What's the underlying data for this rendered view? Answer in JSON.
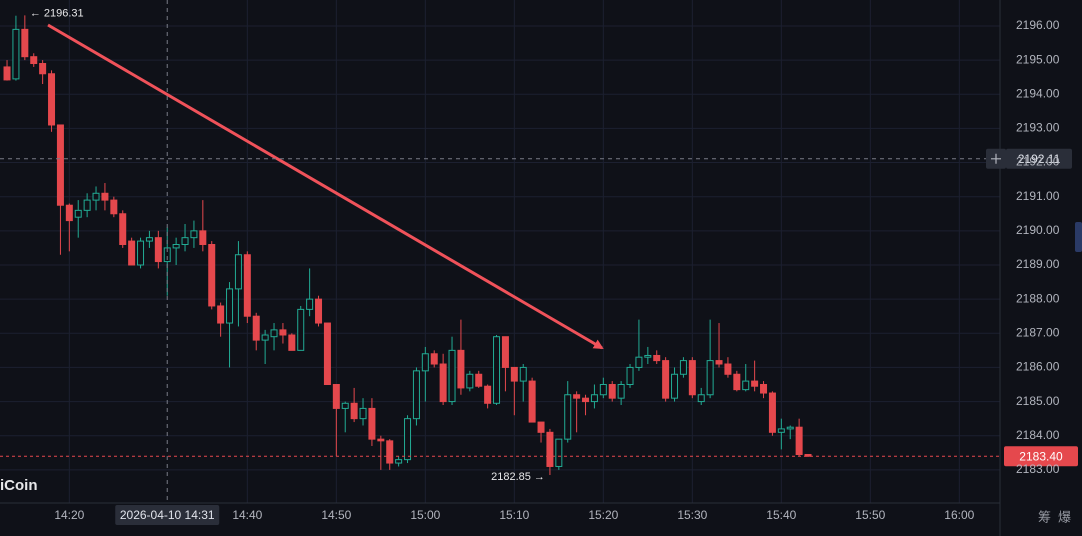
{
  "chart_data": {
    "type": "candlestick",
    "watermark": "iCoin",
    "open": [
      2194.8,
      2194.45,
      2195.9,
      2195.1,
      2194.9,
      2194.6,
      2193.1,
      2190.75,
      2190.4,
      2190.6,
      2190.9,
      2191.1,
      2190.9,
      2190.5,
      2189.7,
      2189.0,
      2189.7,
      2189.8,
      2189.1,
      2189.5,
      2189.6,
      2189.8,
      2190.0,
      2189.6,
      2187.8,
      2187.3,
      2188.3,
      2189.3,
      2187.5,
      2186.8,
      2186.9,
      2187.1,
      2186.95,
      2186.5,
      2187.7,
      2188.0,
      2187.3,
      2185.5,
      2184.8,
      2184.95,
      2184.5,
      2184.8,
      2183.9,
      2183.85,
      2183.2,
      2183.3,
      2184.5,
      2185.9,
      2186.4,
      2186.1,
      2185.0,
      2186.5,
      2185.4,
      2185.8,
      2185.45,
      2184.95,
      2186.9,
      2186.0,
      2185.6,
      2185.6,
      2184.4,
      2184.1,
      2183.1,
      2183.9,
      2185.2,
      2185.1,
      2185.0,
      2185.2,
      2185.5,
      2185.1,
      2185.5,
      2186.0,
      2186.3,
      2186.35,
      2186.2,
      2185.1,
      2185.8,
      2186.2,
      2185.0,
      2185.2,
      2186.2,
      2186.1,
      2185.8,
      2185.35,
      2185.6,
      2185.5,
      2185.25,
      2184.1,
      2184.2,
      2184.25,
      2183.45
    ],
    "high": [
      2195.0,
      2196.3,
      2196.31,
      2195.2,
      2195.0,
      2194.7,
      2193.1,
      2190.8,
      2190.9,
      2191.1,
      2191.3,
      2191.4,
      2191.0,
      2190.6,
      2189.8,
      2189.8,
      2190.0,
      2190.0,
      2190.1,
      2189.8,
      2190.2,
      2190.3,
      2190.9,
      2189.7,
      2187.9,
      2188.5,
      2189.7,
      2189.4,
      2187.6,
      2187.1,
      2187.3,
      2187.3,
      2187.0,
      2187.8,
      2188.9,
      2188.1,
      2187.3,
      2185.5,
      2185.0,
      2185.4,
      2185.1,
      2185.1,
      2184.0,
      2183.9,
      2183.4,
      2184.6,
      2186.0,
      2186.6,
      2186.5,
      2186.4,
      2186.9,
      2187.4,
      2185.9,
      2185.9,
      2185.5,
      2186.95,
      2186.9,
      2186.0,
      2186.1,
      2185.7,
      2184.4,
      2184.2,
      2183.9,
      2185.6,
      2185.3,
      2185.2,
      2185.5,
      2185.7,
      2185.6,
      2185.6,
      2186.1,
      2187.4,
      2186.6,
      2186.5,
      2186.3,
      2186.0,
      2186.3,
      2186.3,
      2185.4,
      2187.4,
      2187.3,
      2186.3,
      2185.9,
      2186.1,
      2186.2,
      2185.6,
      2185.3,
      2184.5,
      2184.3,
      2184.5,
      2183.45
    ],
    "low": [
      2194.4,
      2194.4,
      2195.0,
      2194.8,
      2194.3,
      2192.9,
      2189.3,
      2189.4,
      2189.8,
      2190.4,
      2190.6,
      2190.6,
      2190.4,
      2189.5,
      2189.0,
      2188.9,
      2189.5,
      2188.9,
      2188.1,
      2189.0,
      2189.4,
      2189.5,
      2189.4,
      2187.7,
      2186.9,
      2186.0,
      2187.2,
      2187.3,
      2186.5,
      2186.1,
      2186.5,
      2186.7,
      2186.5,
      2186.5,
      2187.5,
      2187.2,
      2185.5,
      2183.4,
      2184.1,
      2184.4,
      2184.3,
      2183.7,
      2183.0,
      2183.0,
      2183.1,
      2183.2,
      2184.3,
      2185.0,
      2186.0,
      2184.9,
      2184.9,
      2185.2,
      2185.3,
      2185.4,
      2184.8,
      2184.9,
      2185.3,
      2184.6,
      2185.0,
      2184.4,
      2183.8,
      2182.85,
      2183.0,
      2183.8,
      2184.1,
      2184.6,
      2184.8,
      2185.1,
      2185.0,
      2184.9,
      2185.4,
      2185.9,
      2186.1,
      2186.1,
      2185.0,
      2185.0,
      2185.7,
      2185.1,
      2184.9,
      2185.1,
      2186.0,
      2185.7,
      2185.3,
      2185.3,
      2185.3,
      2185.1,
      2184.0,
      2183.6,
      2183.9,
      2183.4,
      2183.38
    ],
    "close": [
      2194.42,
      2195.9,
      2195.1,
      2194.9,
      2194.6,
      2193.1,
      2190.75,
      2190.3,
      2190.6,
      2190.9,
      2191.1,
      2190.9,
      2190.5,
      2189.6,
      2189.0,
      2189.7,
      2189.8,
      2189.1,
      2189.5,
      2189.6,
      2189.8,
      2190.0,
      2189.6,
      2187.8,
      2187.3,
      2188.3,
      2189.3,
      2187.5,
      2186.8,
      2186.95,
      2187.1,
      2186.95,
      2186.5,
      2187.7,
      2188.0,
      2187.3,
      2185.5,
      2184.8,
      2184.95,
      2184.5,
      2184.8,
      2183.9,
      2183.85,
      2183.2,
      2183.3,
      2184.5,
      2185.9,
      2186.4,
      2186.1,
      2185.0,
      2186.5,
      2185.4,
      2185.8,
      2185.45,
      2184.95,
      2186.9,
      2186.0,
      2185.6,
      2186.0,
      2184.4,
      2184.1,
      2183.1,
      2183.9,
      2185.2,
      2185.1,
      2185.0,
      2185.2,
      2185.5,
      2185.1,
      2185.5,
      2186.0,
      2186.3,
      2186.35,
      2186.2,
      2185.1,
      2185.8,
      2186.2,
      2185.2,
      2185.2,
      2186.2,
      2186.1,
      2185.8,
      2185.35,
      2185.6,
      2185.45,
      2185.25,
      2184.1,
      2184.2,
      2184.25,
      2183.45,
      2183.4
    ],
    "up_color": "#22ab94",
    "down_color": "#e5484d",
    "xlim": [
      -0.79,
      111.57
    ],
    "xticks": [
      {
        "value": 7,
        "label": "14:20"
      },
      {
        "value": 27,
        "label": "14:40"
      },
      {
        "value": 37,
        "label": "14:50"
      },
      {
        "value": 47,
        "label": "15:00"
      },
      {
        "value": 57,
        "label": "15:10"
      },
      {
        "value": 67,
        "label": "15:20"
      },
      {
        "value": 77,
        "label": "15:30"
      },
      {
        "value": 87,
        "label": "15:40"
      },
      {
        "value": 97,
        "label": "15:50"
      },
      {
        "value": 107,
        "label": "16:00"
      }
    ],
    "ylim": [
      2182.03,
      2196.76
    ],
    "yticks": [
      {
        "value": 2183,
        "label": "2183.00"
      },
      {
        "value": 2184,
        "label": "2184.00"
      },
      {
        "value": 2185,
        "label": "2185.00"
      },
      {
        "value": 2186,
        "label": "2186.00"
      },
      {
        "value": 2187,
        "label": "2187.00"
      },
      {
        "value": 2188,
        "label": "2188.00"
      },
      {
        "value": 2189,
        "label": "2189.00"
      },
      {
        "value": 2190,
        "label": "2190.00"
      },
      {
        "value": 2191,
        "label": "2191.00"
      },
      {
        "value": 2192,
        "label": "2192.00"
      },
      {
        "value": 2193,
        "label": "2193.00"
      },
      {
        "value": 2194,
        "label": "2194.00"
      },
      {
        "value": 2195,
        "label": "2195.00"
      },
      {
        "value": 2196,
        "label": "2196.00"
      }
    ],
    "grid": true,
    "crosshair": {
      "x": 18,
      "time_label": "2026-04-10 14:31",
      "price": 2192.11
    },
    "last_price": {
      "value": 2183.4,
      "label": "2183.40"
    },
    "annotations": [
      {
        "x": 2,
        "value": 2196.31,
        "text": "← 2196.31"
      },
      {
        "x": 61,
        "value": 2182.85,
        "text": "2182.85 →"
      }
    ],
    "toolbar": [
      "筹",
      "爆"
    ]
  }
}
